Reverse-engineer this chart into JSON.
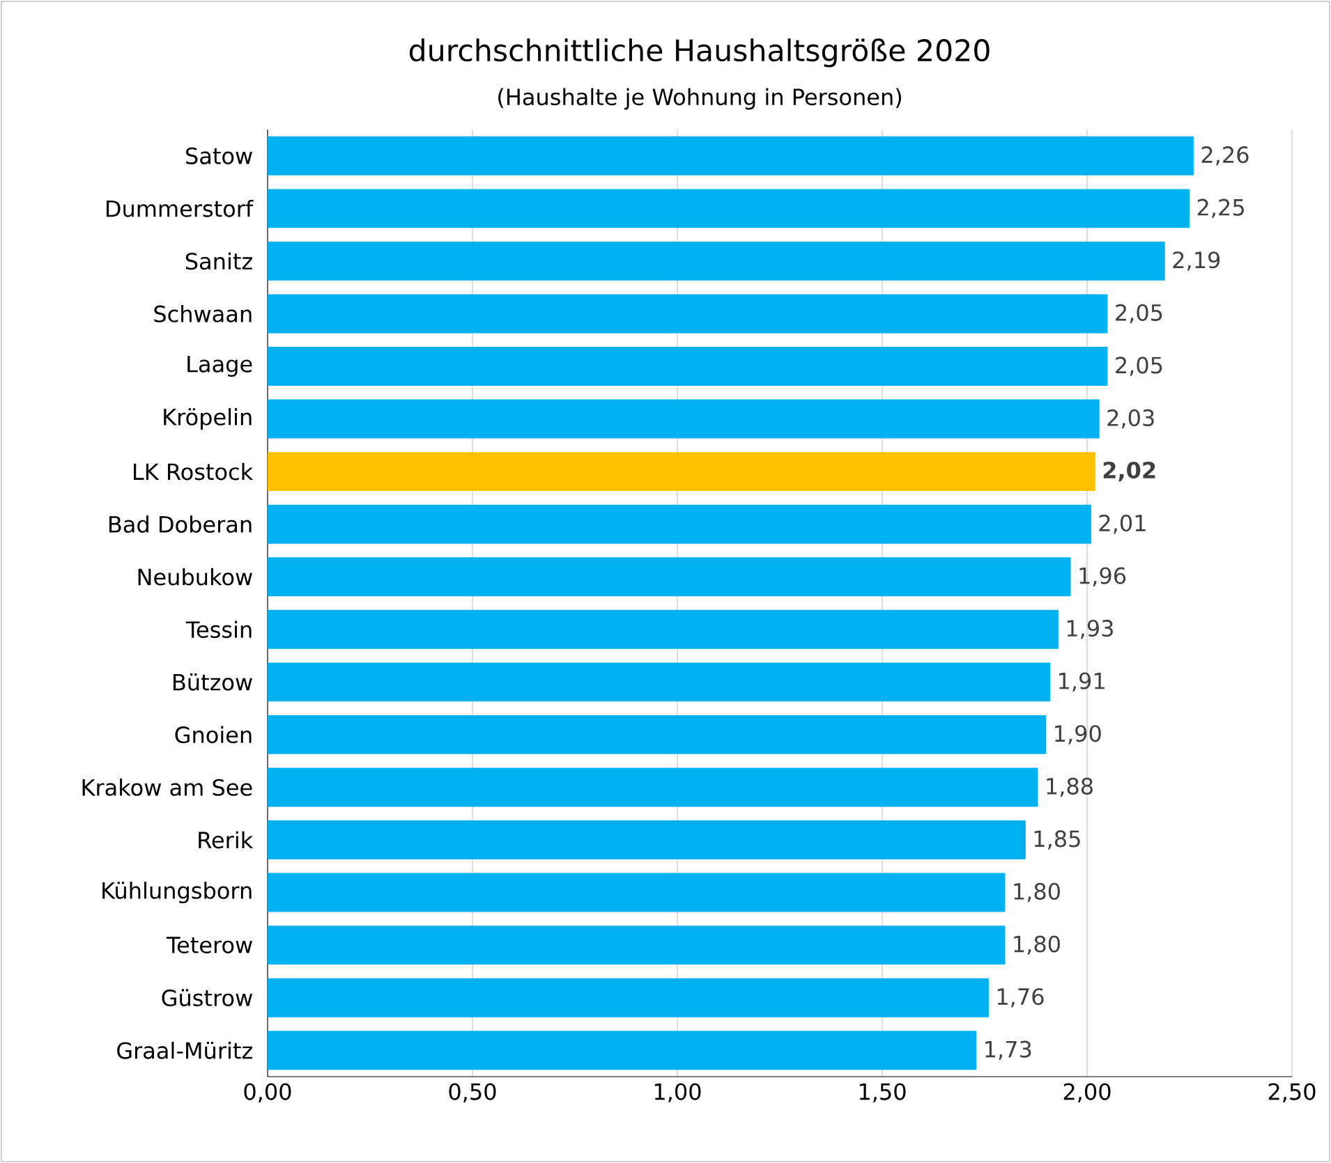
{
  "chart_data": {
    "type": "bar",
    "orientation": "horizontal",
    "title": "durchschnittliche Haushaltsgröße 2020",
    "subtitle": "(Haushalte je Wohnung in Personen)",
    "categories": [
      "Satow",
      "Dummerstorf",
      "Sanitz",
      "Schwaan",
      "Laage",
      "Kröpelin",
      "LK Rostock",
      "Bad Doberan",
      "Neubukow",
      "Tessin",
      "Bützow",
      "Gnoien",
      "Krakow am See",
      "Rerik",
      "Kühlungsborn",
      "Teterow",
      "Güstrow",
      "Graal-Müritz"
    ],
    "values": [
      2.26,
      2.25,
      2.19,
      2.05,
      2.05,
      2.03,
      2.02,
      2.01,
      1.96,
      1.93,
      1.91,
      1.9,
      1.88,
      1.85,
      1.8,
      1.8,
      1.76,
      1.73
    ],
    "colors": [
      "#00b0f0",
      "#00b0f0",
      "#00b0f0",
      "#00b0f0",
      "#00b0f0",
      "#00b0f0",
      "#ffc000",
      "#00b0f0",
      "#00b0f0",
      "#00b0f0",
      "#00b0f0",
      "#00b0f0",
      "#00b0f0",
      "#00b0f0",
      "#00b0f0",
      "#00b0f0",
      "#00b0f0",
      "#00b0f0"
    ],
    "value_labels": [
      "2,26",
      "2,25",
      "2,19",
      "2,05",
      "2,05",
      "2,03",
      "**2,02**",
      "2,01",
      "1,96",
      "1,93",
      "1,91",
      "1,90",
      "1,88",
      "1,85",
      "1,80",
      "1,80",
      "1,76",
      "1,73"
    ],
    "xlim": [
      0,
      2.5
    ],
    "xticks": [
      {
        "value": 0,
        "label": "0,00"
      },
      {
        "value": 0.5,
        "label": "0,50"
      },
      {
        "value": 1,
        "label": "1,00"
      },
      {
        "value": 1.5,
        "label": "1,50"
      },
      {
        "value": 2,
        "label": "2,00"
      },
      {
        "value": 2.5,
        "label": "2,50"
      }
    ],
    "grid": "x"
  }
}
